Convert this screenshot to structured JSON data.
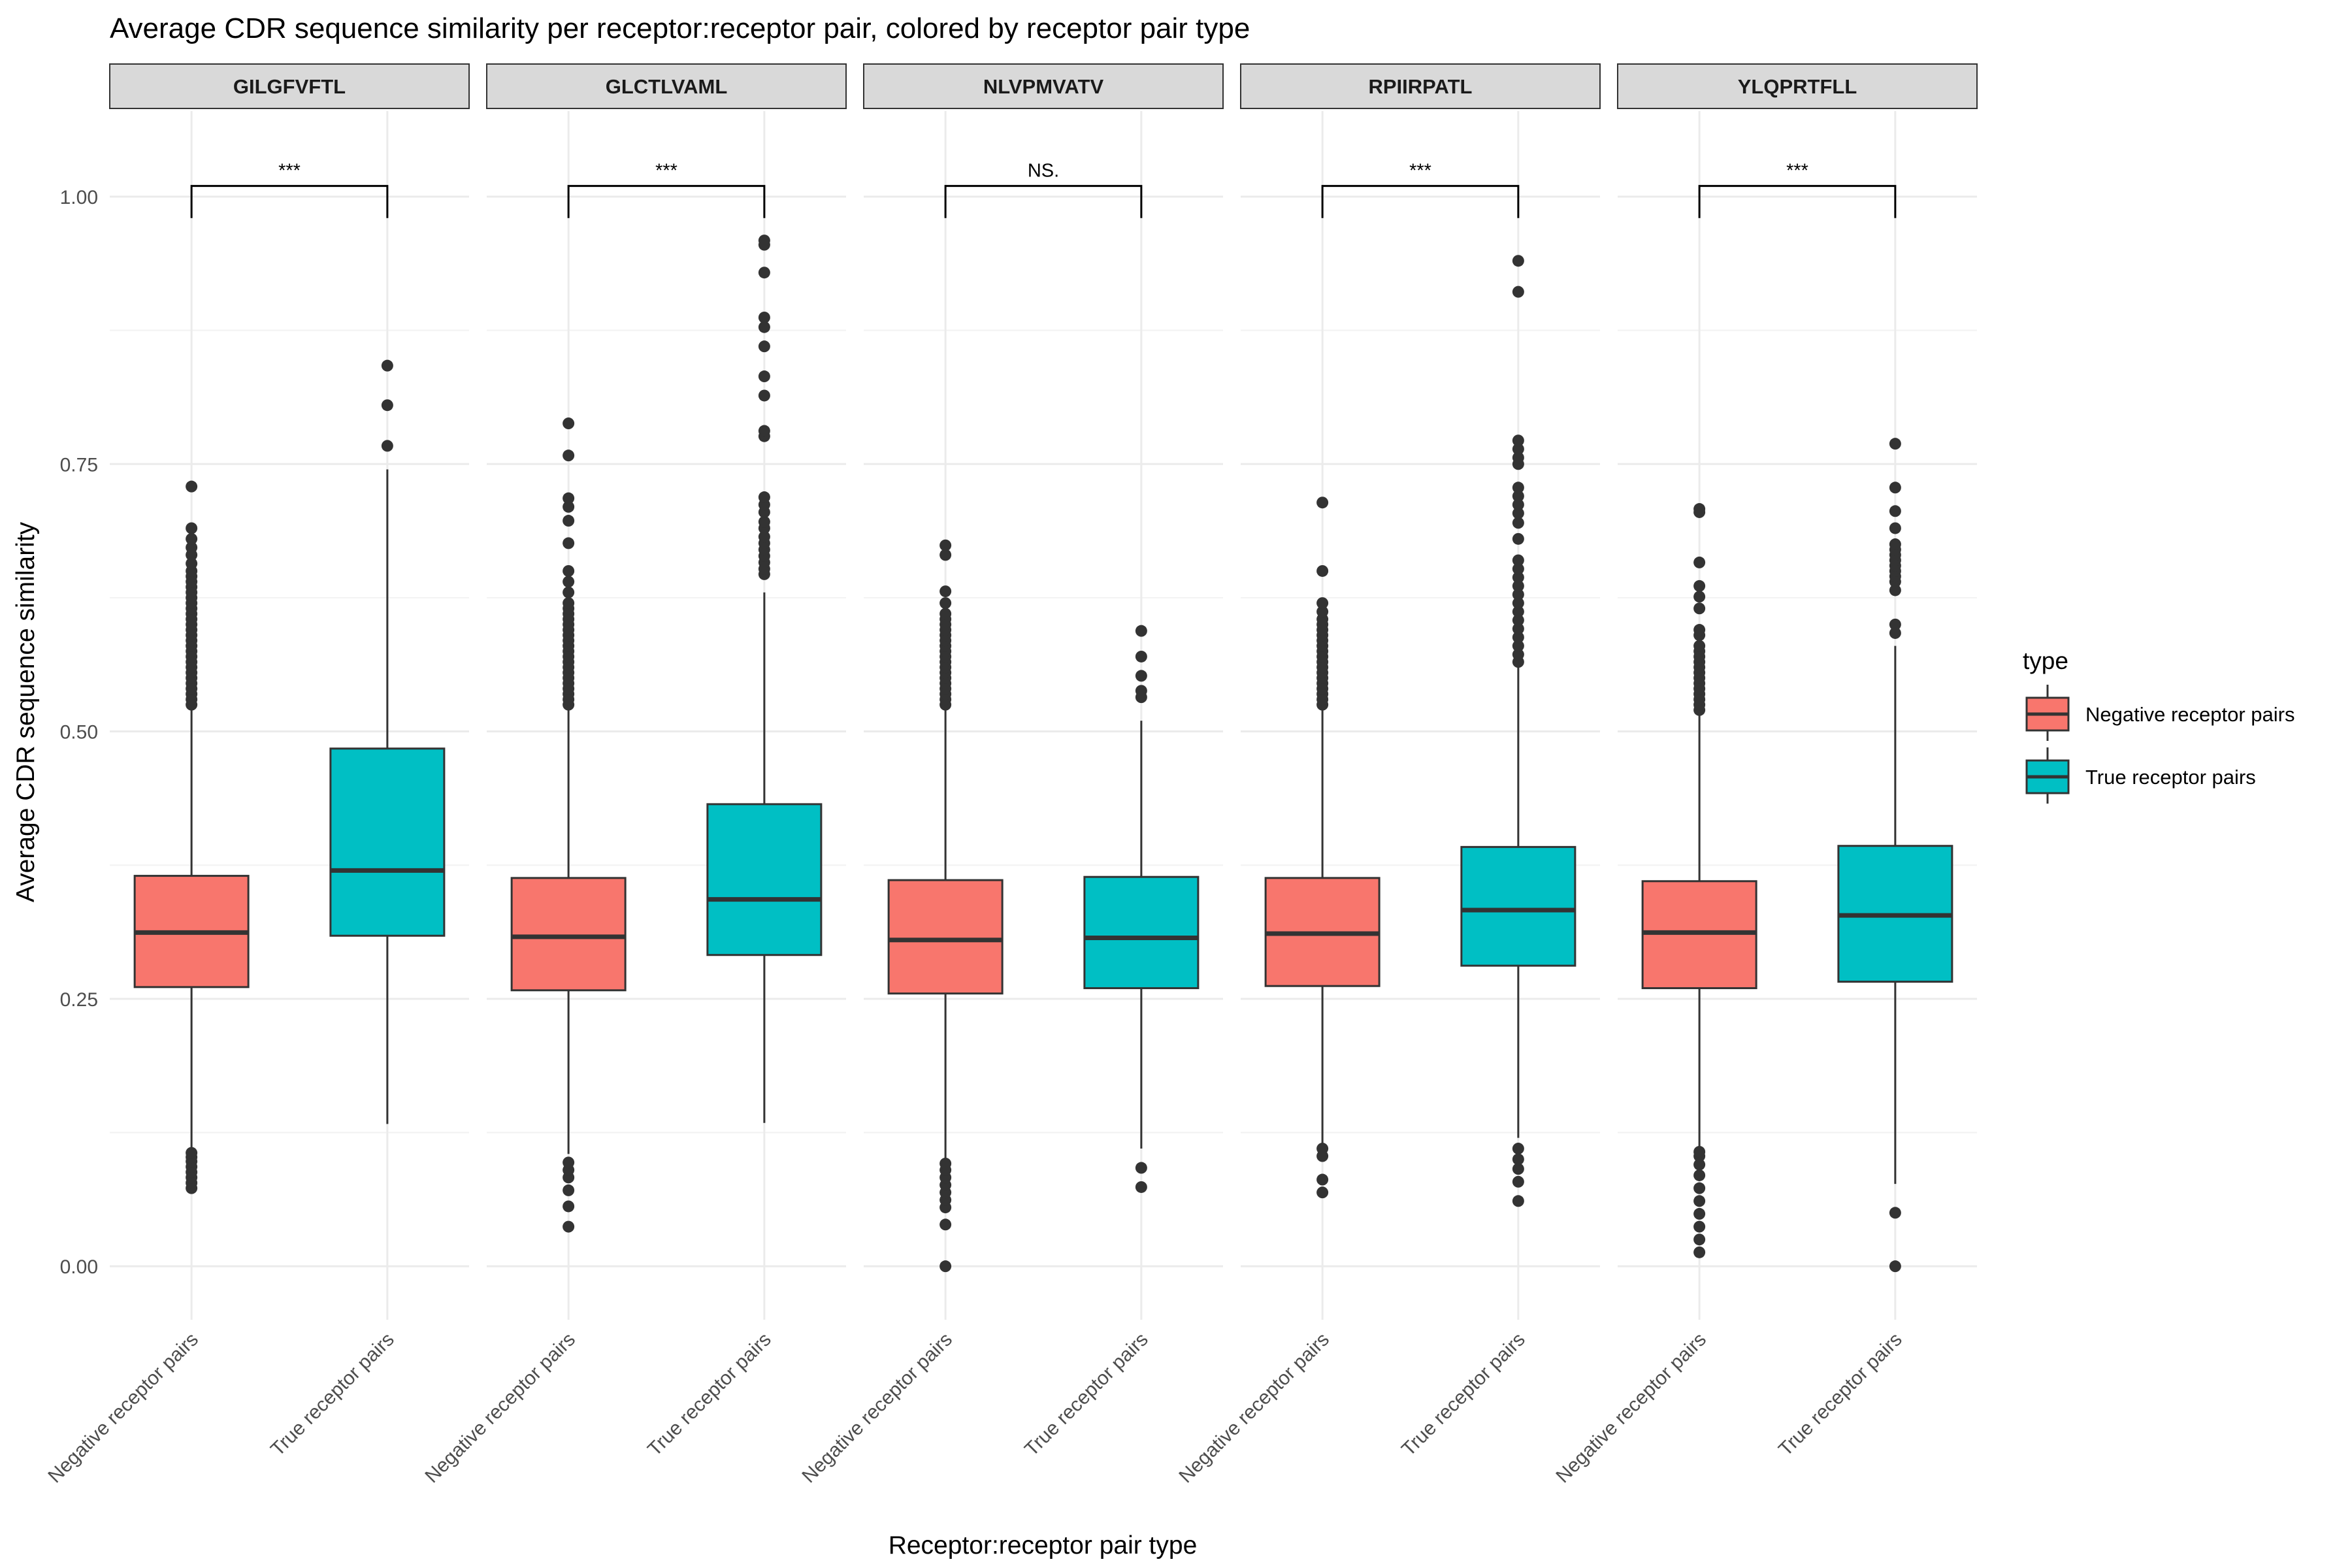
{
  "chart_data": {
    "type": "boxplot",
    "title": "Average CDR sequence similarity per receptor:receptor pair, colored by receptor pair type",
    "xlabel": "Receptor:receptor pair type",
    "ylabel": "Average CDR sequence similarity",
    "ylim": [
      -0.05,
      1.08
    ],
    "yticks": [
      0.0,
      0.25,
      0.5,
      0.75,
      1.0
    ],
    "ytick_labels": [
      "0.00",
      "0.25",
      "0.50",
      "0.75",
      "1.00"
    ],
    "categories": [
      "Negative receptor pairs",
      "True receptor pairs"
    ],
    "grid": true,
    "legend": {
      "title": "type",
      "position": "right",
      "entries": [
        {
          "label": "Negative receptor pairs",
          "color": "#F8766D"
        },
        {
          "label": "True receptor pairs",
          "color": "#00BFC4"
        }
      ]
    },
    "colors": {
      "Negative receptor pairs": "#F8766D",
      "True receptor pairs": "#00BFC4"
    },
    "facets": [
      {
        "name": "GILGFVFTL",
        "significance": "***",
        "boxes": [
          {
            "category": "Negative receptor pairs",
            "whisker_low": 0.11,
            "q1": 0.261,
            "median": 0.312,
            "q3": 0.365,
            "whisker_high": 0.52,
            "outliers": [
              0.073,
              0.078,
              0.083,
              0.088,
              0.093,
              0.098,
              0.102,
              0.106,
              0.525,
              0.53,
              0.535,
              0.54,
              0.545,
              0.55,
              0.555,
              0.56,
              0.565,
              0.57,
              0.575,
              0.58,
              0.585,
              0.59,
              0.595,
              0.6,
              0.605,
              0.61,
              0.615,
              0.62,
              0.625,
              0.63,
              0.635,
              0.64,
              0.645,
              0.65,
              0.657,
              0.665,
              0.672,
              0.68,
              0.69,
              0.729
            ]
          },
          {
            "category": "True receptor pairs",
            "whisker_low": 0.133,
            "q1": 0.309,
            "median": 0.37,
            "q3": 0.484,
            "whisker_high": 0.745,
            "outliers": [
              0.767,
              0.805,
              0.842
            ]
          }
        ]
      },
      {
        "name": "GLCTLVAML",
        "significance": "***",
        "boxes": [
          {
            "category": "Negative receptor pairs",
            "whisker_low": 0.105,
            "q1": 0.258,
            "median": 0.308,
            "q3": 0.363,
            "whisker_high": 0.52,
            "outliers": [
              0.037,
              0.056,
              0.071,
              0.083,
              0.09,
              0.097,
              0.525,
              0.53,
              0.535,
              0.54,
              0.545,
              0.55,
              0.555,
              0.56,
              0.565,
              0.57,
              0.575,
              0.58,
              0.585,
              0.59,
              0.595,
              0.6,
              0.605,
              0.61,
              0.615,
              0.62,
              0.63,
              0.64,
              0.65,
              0.676,
              0.697,
              0.71,
              0.718,
              0.758,
              0.788
            ]
          },
          {
            "category": "True receptor pairs",
            "whisker_low": 0.134,
            "q1": 0.291,
            "median": 0.343,
            "q3": 0.432,
            "whisker_high": 0.63,
            "outliers": [
              0.647,
              0.652,
              0.658,
              0.664,
              0.67,
              0.676,
              0.682,
              0.69,
              0.696,
              0.705,
              0.712,
              0.719,
              0.776,
              0.781,
              0.814,
              0.832,
              0.86,
              0.878,
              0.887,
              0.929,
              0.955,
              0.959
            ]
          }
        ]
      },
      {
        "name": "NLVPMVATV",
        "significance": "NS.",
        "boxes": [
          {
            "category": "Negative receptor pairs",
            "whisker_low": 0.1,
            "q1": 0.255,
            "median": 0.305,
            "q3": 0.361,
            "whisker_high": 0.52,
            "outliers": [
              0.0,
              0.039,
              0.055,
              0.062,
              0.069,
              0.076,
              0.083,
              0.09,
              0.096,
              0.525,
              0.53,
              0.535,
              0.54,
              0.545,
              0.55,
              0.555,
              0.56,
              0.565,
              0.57,
              0.575,
              0.58,
              0.585,
              0.59,
              0.595,
              0.6,
              0.605,
              0.61,
              0.62,
              0.631,
              0.665,
              0.674
            ]
          },
          {
            "category": "True receptor pairs",
            "whisker_low": 0.11,
            "q1": 0.26,
            "median": 0.307,
            "q3": 0.364,
            "whisker_high": 0.51,
            "outliers": [
              0.074,
              0.092,
              0.532,
              0.538,
              0.552,
              0.57,
              0.594
            ]
          }
        ]
      },
      {
        "name": "RPIIRPATL",
        "significance": "***",
        "boxes": [
          {
            "category": "Negative receptor pairs",
            "whisker_low": 0.115,
            "q1": 0.262,
            "median": 0.311,
            "q3": 0.363,
            "whisker_high": 0.52,
            "outliers": [
              0.069,
              0.081,
              0.103,
              0.11,
              0.525,
              0.53,
              0.535,
              0.54,
              0.545,
              0.55,
              0.555,
              0.56,
              0.565,
              0.57,
              0.575,
              0.58,
              0.585,
              0.59,
              0.595,
              0.6,
              0.605,
              0.612,
              0.62,
              0.65,
              0.714
            ]
          },
          {
            "category": "True receptor pairs",
            "whisker_low": 0.12,
            "q1": 0.281,
            "median": 0.333,
            "q3": 0.392,
            "whisker_high": 0.56,
            "outliers": [
              0.061,
              0.079,
              0.091,
              0.1,
              0.11,
              0.565,
              0.572,
              0.58,
              0.588,
              0.596,
              0.604,
              0.612,
              0.62,
              0.628,
              0.636,
              0.644,
              0.652,
              0.66,
              0.68,
              0.695,
              0.704,
              0.712,
              0.72,
              0.728,
              0.75,
              0.756,
              0.764,
              0.772,
              0.911,
              0.94
            ]
          }
        ]
      },
      {
        "name": "YLQPRTFLL",
        "significance": "***",
        "boxes": [
          {
            "category": "Negative receptor pairs",
            "whisker_low": 0.11,
            "q1": 0.26,
            "median": 0.312,
            "q3": 0.36,
            "whisker_high": 0.515,
            "outliers": [
              0.013,
              0.025,
              0.037,
              0.049,
              0.061,
              0.073,
              0.085,
              0.095,
              0.103,
              0.107,
              0.52,
              0.525,
              0.53,
              0.535,
              0.54,
              0.545,
              0.55,
              0.555,
              0.56,
              0.565,
              0.57,
              0.575,
              0.58,
              0.59,
              0.595,
              0.615,
              0.626,
              0.636,
              0.658,
              0.705,
              0.708
            ]
          },
          {
            "category": "True receptor pairs",
            "whisker_low": 0.077,
            "q1": 0.266,
            "median": 0.328,
            "q3": 0.393,
            "whisker_high": 0.58,
            "outliers": [
              0.0,
              0.05,
              0.592,
              0.6,
              0.632,
              0.64,
              0.645,
              0.65,
              0.655,
              0.66,
              0.665,
              0.67,
              0.675,
              0.69,
              0.706,
              0.728,
              0.769
            ]
          }
        ]
      }
    ]
  }
}
